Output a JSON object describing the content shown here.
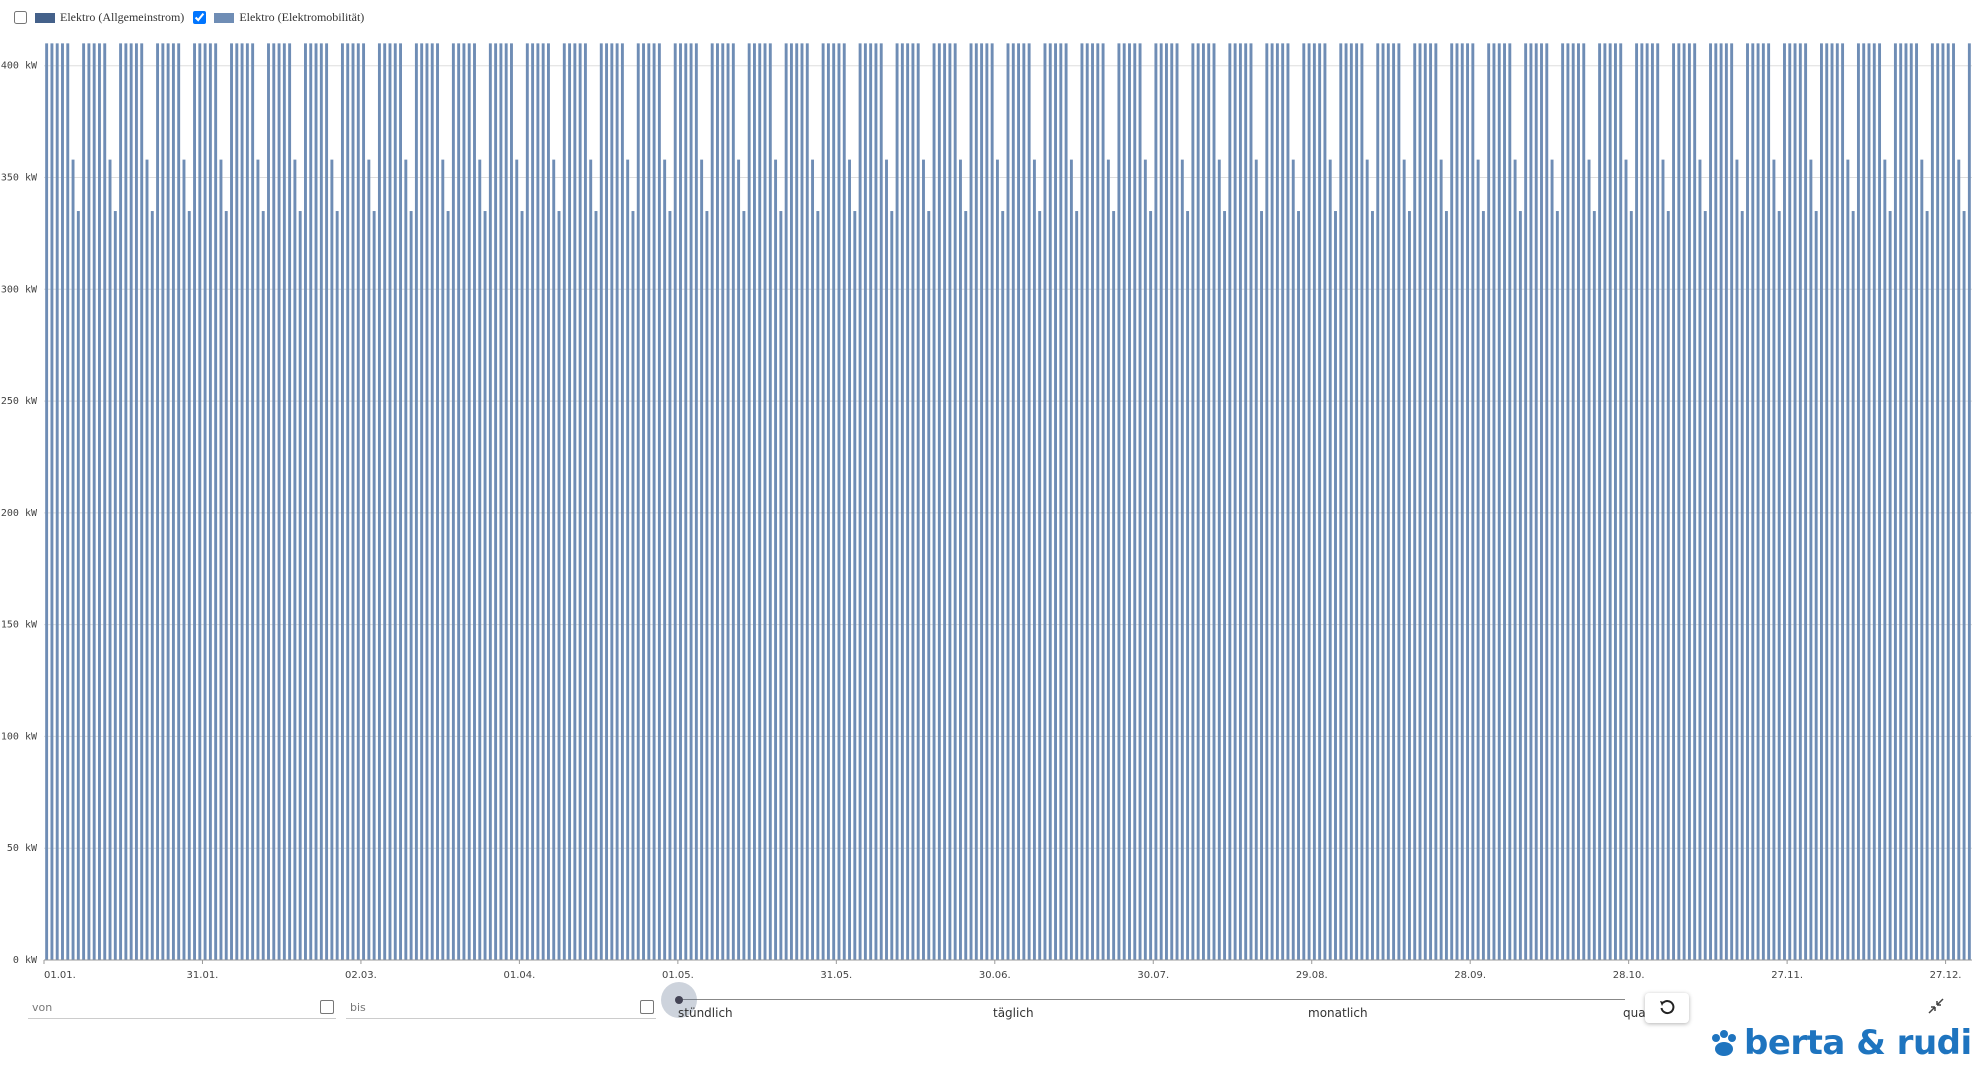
{
  "chart_data": {
    "type": "bar",
    "series": [
      {
        "name": "Elektro (Allgemeinstrom)",
        "color": "#44618a",
        "visible": false
      },
      {
        "name": "Elektro (Elektromobilität)",
        "color": "#6f8db5",
        "visible": true,
        "values": [
          410,
          410,
          410,
          410,
          410,
          358,
          335,
          410,
          410,
          410,
          410,
          410,
          358,
          335,
          410,
          410,
          410,
          410,
          410,
          358,
          335,
          410,
          410,
          410,
          410,
          410,
          358,
          335,
          410,
          410,
          410,
          410,
          410,
          358,
          335,
          410,
          410,
          410,
          410,
          410,
          358,
          335,
          410,
          410,
          410,
          410,
          410,
          358,
          335,
          410,
          410,
          410,
          410,
          410,
          358,
          335,
          410,
          410,
          410,
          410,
          410,
          358,
          335,
          410,
          410,
          410,
          410,
          410,
          358,
          335,
          410,
          410,
          410,
          410,
          410,
          358,
          335,
          410,
          410,
          410,
          410,
          410,
          358,
          335,
          410,
          410,
          410,
          410,
          410,
          358,
          335,
          410,
          410,
          410,
          410,
          410,
          358,
          335,
          410,
          410,
          410,
          410,
          410,
          358,
          335,
          410,
          410,
          410,
          410,
          410,
          358,
          335,
          410,
          410,
          410,
          410,
          410,
          358,
          335,
          410,
          410,
          410,
          410,
          410,
          358,
          335,
          410,
          410,
          410,
          410,
          410,
          358,
          335,
          410,
          410,
          410,
          410,
          410,
          358,
          335,
          410,
          410,
          410,
          410,
          410,
          358,
          335,
          410,
          410,
          410,
          410,
          410,
          358,
          335,
          410,
          410,
          410,
          410,
          410,
          358,
          335,
          410,
          410,
          410,
          410,
          410,
          358,
          335,
          410,
          410,
          410,
          410,
          410,
          358,
          335,
          410,
          410,
          410,
          410,
          410,
          358,
          335,
          410,
          410,
          410,
          410,
          410,
          358,
          335,
          410,
          410,
          410,
          410,
          410,
          358,
          335,
          410,
          410,
          410,
          410,
          410,
          358,
          335,
          410,
          410,
          410,
          410,
          410,
          358,
          335,
          410,
          410,
          410,
          410,
          410,
          358,
          335,
          410,
          410,
          410,
          410,
          410,
          358,
          335,
          410,
          410,
          410,
          410,
          410,
          358,
          335,
          410,
          410,
          410,
          410,
          410,
          358,
          335,
          410,
          410,
          410,
          410,
          410,
          358,
          335,
          410,
          410,
          410,
          410,
          410,
          358,
          335,
          410,
          410,
          410,
          410,
          410,
          358,
          335,
          410,
          410,
          410,
          410,
          410,
          358,
          335,
          410,
          410,
          410,
          410,
          410,
          358,
          335,
          410,
          410,
          410,
          410,
          410,
          358,
          335,
          410,
          410,
          410,
          410,
          410,
          358,
          335,
          410,
          410,
          410,
          410,
          410,
          358,
          335,
          410,
          410,
          410,
          410,
          410,
          358,
          335,
          410,
          410,
          410,
          410,
          410,
          358,
          335,
          410,
          410,
          410,
          410,
          410,
          358,
          335,
          410,
          410,
          410,
          410,
          410,
          358,
          335,
          410,
          410,
          410,
          410,
          410,
          358,
          335,
          410,
          410,
          410,
          410,
          410,
          358,
          335,
          410,
          410,
          410,
          410,
          410,
          358,
          335,
          410,
          410,
          410,
          410,
          410,
          358,
          335,
          410,
          410,
          410,
          410,
          410,
          358,
          335,
          410,
          410,
          410,
          410,
          410,
          358,
          335,
          410
        ]
      }
    ],
    "xlim": [
      0,
      365
    ],
    "xticks": [
      {
        "value": 0,
        "label": "01.01."
      },
      {
        "value": 30,
        "label": "31.01."
      },
      {
        "value": 60,
        "label": "02.03."
      },
      {
        "value": 90,
        "label": "01.04."
      },
      {
        "value": 120,
        "label": "01.05."
      },
      {
        "value": 150,
        "label": "31.05."
      },
      {
        "value": 180,
        "label": "30.06."
      },
      {
        "value": 210,
        "label": "30.07."
      },
      {
        "value": 240,
        "label": "29.08."
      },
      {
        "value": 270,
        "label": "28.09."
      },
      {
        "value": 300,
        "label": "28.10."
      },
      {
        "value": 330,
        "label": "27.11."
      },
      {
        "value": 360,
        "label": "27.12."
      }
    ],
    "ylim": [
      0,
      420
    ],
    "yticks": [
      {
        "value": 0,
        "label": "0 kW"
      },
      {
        "value": 50,
        "label": "50 kW"
      },
      {
        "value": 100,
        "label": "100 kW"
      },
      {
        "value": 150,
        "label": "150 kW"
      },
      {
        "value": 200,
        "label": "200 kW"
      },
      {
        "value": 250,
        "label": "250 kW"
      },
      {
        "value": 300,
        "label": "300 kW"
      },
      {
        "value": 350,
        "label": "350 kW"
      },
      {
        "value": 400,
        "label": "400 kW"
      }
    ],
    "grid": true
  },
  "controls": {
    "from": "von",
    "to": "bis",
    "resolution": [
      "stündlich",
      "täglich",
      "monatlich",
      "quar"
    ]
  },
  "brand": "berta & rudi"
}
